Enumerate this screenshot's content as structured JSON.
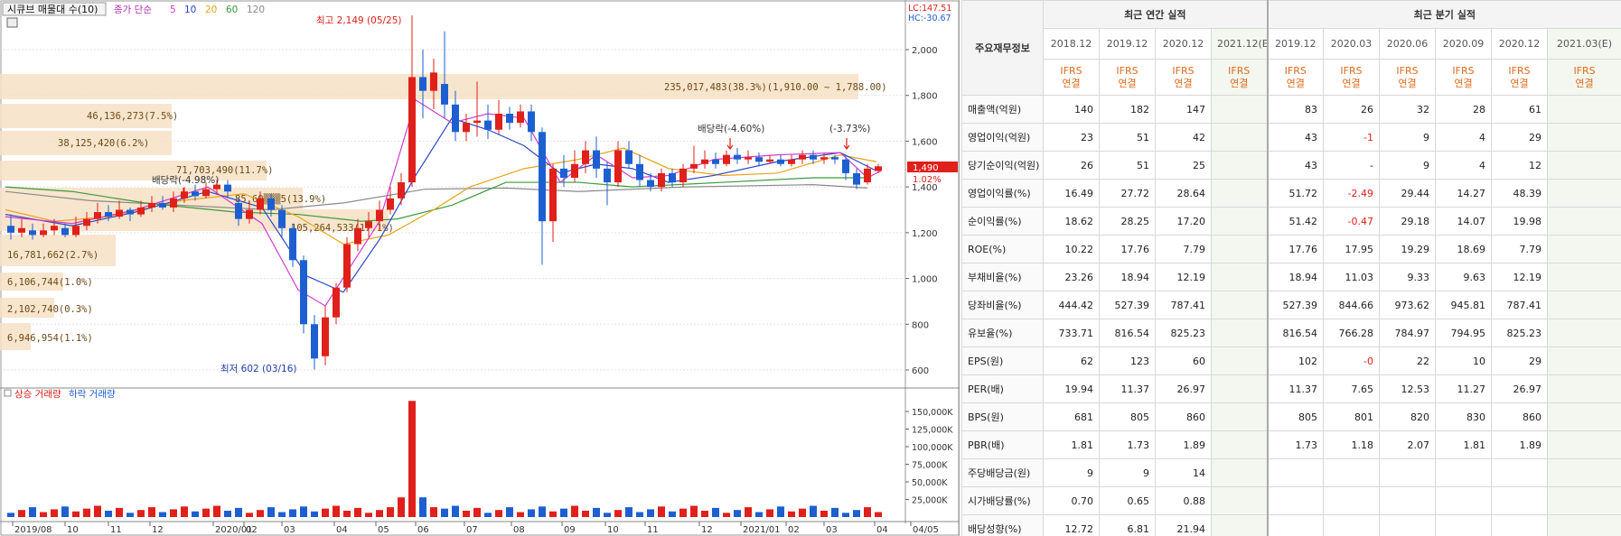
{
  "chart": {
    "title": "시큐브 매물대 수(10)",
    "ma_label": "종가 단순",
    "ma_periods": [
      {
        "label": "5",
        "color": "#d03cd0"
      },
      {
        "label": "10",
        "color": "#2a46c8"
      },
      {
        "label": "20",
        "color": "#e8a41a"
      },
      {
        "label": "60",
        "color": "#3a9a3a"
      },
      {
        "label": "120",
        "color": "#8a8a8a"
      }
    ],
    "lc": "LC:147.51",
    "hc": "HC:-30.67",
    "current_price": "1,490",
    "current_pct": "1.02%",
    "price_axis": [
      "2,000",
      "1,800",
      "1,600",
      "1,400",
      "1,200",
      "1,000",
      "800",
      "600"
    ],
    "volume_axis": [
      "150,000K",
      "125,000K",
      "100,000K",
      "75,000K",
      "50,000K",
      "25,000K"
    ],
    "x_axis": [
      "2019/08",
      "10",
      "11",
      "12",
      "2020/01",
      "02",
      "03",
      "04",
      "05",
      "06",
      "07",
      "08",
      "09",
      "10",
      "11",
      "12",
      "2021/01",
      "02",
      "03",
      "04",
      "04/05"
    ],
    "high_label": "최고 2,149 (05/25)",
    "low_label": "최저 602 (03/16)",
    "volume_legend_up": "상승 거래량",
    "volume_legend_down": "하락 거래량",
    "volume_profile": [
      {
        "label": "235,017,483(38.3%)(1,910.00 ~ 1,788.00)"
      },
      {
        "label": "46,136,273(7.5%)"
      },
      {
        "label": "38,125,420(6.2%)"
      },
      {
        "label": "71,703,490(11.7%)"
      },
      {
        "label": "85,60▒▒▒5(13.9%)"
      },
      {
        "label": "105,264,533(17.1%)"
      },
      {
        "label": "16,781,662(2.7%)"
      },
      {
        "label": "6,106,744(1.0%)"
      },
      {
        "label": "2,102,740(0.3%)"
      },
      {
        "label": "6,946,954(1.1%)"
      }
    ],
    "annotations": [
      "배당락(-4.98%)",
      "배당락(-4.60%)",
      "(-3.73%)"
    ]
  },
  "fin": {
    "corner": "주요재무정보",
    "annual_header": "최근 연간 실적",
    "quarter_header": "최근 분기 실적",
    "annual_periods": [
      "2018.12",
      "2019.12",
      "2020.12",
      "2021.12(E)"
    ],
    "quarter_periods": [
      "2019.12",
      "2020.03",
      "2020.06",
      "2020.09",
      "2020.12",
      "2021.03(E)"
    ],
    "ifrs_top": "IFRS",
    "ifrs_bottom": "연결",
    "rows": [
      {
        "label": "매출액(억원)",
        "annual": [
          "140",
          "182",
          "147",
          ""
        ],
        "quarter": [
          "83",
          "26",
          "32",
          "28",
          "61",
          ""
        ]
      },
      {
        "label": "영업이익(억원)",
        "annual": [
          "23",
          "51",
          "42",
          ""
        ],
        "quarter": [
          "43",
          "-1",
          "9",
          "4",
          "29",
          ""
        ]
      },
      {
        "label": "당기순이익(억원)",
        "annual": [
          "26",
          "51",
          "25",
          ""
        ],
        "quarter": [
          "43",
          "-",
          "9",
          "4",
          "12",
          ""
        ]
      },
      {
        "label": "영업이익률(%)",
        "annual": [
          "16.49",
          "27.72",
          "28.64",
          ""
        ],
        "quarter": [
          "51.72",
          "-2.49",
          "29.44",
          "14.27",
          "48.39",
          ""
        ]
      },
      {
        "label": "순이익률(%)",
        "annual": [
          "18.62",
          "28.25",
          "17.20",
          ""
        ],
        "quarter": [
          "51.42",
          "-0.47",
          "29.18",
          "14.07",
          "19.98",
          ""
        ]
      },
      {
        "label": "ROE(%)",
        "annual": [
          "10.22",
          "17.76",
          "7.79",
          ""
        ],
        "quarter": [
          "17.76",
          "17.95",
          "19.29",
          "18.69",
          "7.79",
          ""
        ]
      },
      {
        "label": "부채비율(%)",
        "annual": [
          "23.26",
          "18.94",
          "12.19",
          ""
        ],
        "quarter": [
          "18.94",
          "11.03",
          "9.33",
          "9.63",
          "12.19",
          ""
        ]
      },
      {
        "label": "당좌비율(%)",
        "annual": [
          "444.42",
          "527.39",
          "787.41",
          ""
        ],
        "quarter": [
          "527.39",
          "844.66",
          "973.62",
          "945.81",
          "787.41",
          ""
        ]
      },
      {
        "label": "유보율(%)",
        "annual": [
          "733.71",
          "816.54",
          "825.23",
          ""
        ],
        "quarter": [
          "816.54",
          "766.28",
          "784.97",
          "794.95",
          "825.23",
          ""
        ]
      },
      {
        "label": "EPS(원)",
        "annual": [
          "62",
          "123",
          "60",
          ""
        ],
        "quarter": [
          "102",
          "-0",
          "22",
          "10",
          "29",
          ""
        ]
      },
      {
        "label": "PER(배)",
        "annual": [
          "19.94",
          "11.37",
          "26.97",
          ""
        ],
        "quarter": [
          "11.37",
          "7.65",
          "12.53",
          "11.27",
          "26.97",
          ""
        ]
      },
      {
        "label": "BPS(원)",
        "annual": [
          "681",
          "805",
          "860",
          ""
        ],
        "quarter": [
          "805",
          "801",
          "820",
          "830",
          "860",
          ""
        ]
      },
      {
        "label": "PBR(배)",
        "annual": [
          "1.81",
          "1.73",
          "1.89",
          ""
        ],
        "quarter": [
          "1.73",
          "1.18",
          "2.07",
          "1.81",
          "1.89",
          ""
        ]
      },
      {
        "label": "주당배당금(원)",
        "annual": [
          "9",
          "9",
          "14",
          ""
        ],
        "quarter": [
          "",
          "",
          "",
          "",
          "",
          ""
        ]
      },
      {
        "label": "시가배당률(%)",
        "annual": [
          "0.70",
          "0.65",
          "0.88",
          ""
        ],
        "quarter": [
          "",
          "",
          "",
          "",
          "",
          ""
        ]
      },
      {
        "label": "배당성향(%)",
        "annual": [
          "12.72",
          "6.81",
          "21.94",
          ""
        ],
        "quarter": [
          "",
          "",
          "",
          "",
          "",
          ""
        ]
      }
    ],
    "negative_color": "#e0201a"
  }
}
